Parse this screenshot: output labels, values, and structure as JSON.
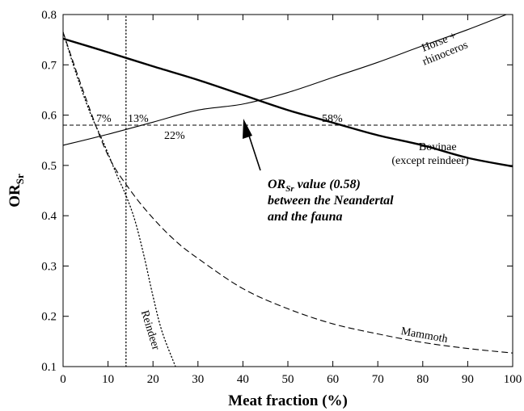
{
  "chart_data": {
    "type": "line",
    "title": "",
    "xlabel": "Meat fraction (%)",
    "ylabel": {
      "main": "OR",
      "sub": "Sr"
    },
    "xlim": [
      0,
      100
    ],
    "ylim": [
      0.1,
      0.8
    ],
    "xticks": [
      "0",
      "10",
      "20",
      "30",
      "40",
      "50",
      "60",
      "70",
      "80",
      "90",
      "100"
    ],
    "yticks": [
      "0.1",
      "0.2",
      "0.3",
      "0.4",
      "0.5",
      "0.6",
      "0.7",
      "0.8"
    ],
    "reference_line": {
      "y": 0.58,
      "style": "dashed"
    },
    "series": [
      {
        "name": "Horse + rhinoceros",
        "label_lines": [
          "Horse +",
          "rhinoceros"
        ],
        "style": "thin-solid",
        "x": [
          0,
          10,
          20,
          30,
          40,
          50,
          60,
          70,
          80,
          90,
          100
        ],
        "y": [
          0.54,
          0.562,
          0.586,
          0.61,
          0.622,
          0.645,
          0.675,
          0.705,
          0.738,
          0.77,
          0.805
        ]
      },
      {
        "name": "Bovinae (except reindeer)",
        "label_lines": [
          "Bovinae",
          "(except reindeer)"
        ],
        "style": "thick-solid",
        "x": [
          0,
          10,
          20,
          30,
          40,
          50,
          60,
          70,
          80,
          90,
          100
        ],
        "y": [
          0.752,
          0.725,
          0.697,
          0.67,
          0.64,
          0.61,
          0.585,
          0.56,
          0.54,
          0.515,
          0.498
        ]
      },
      {
        "name": "Mammoth",
        "label_lines": [
          "Mammoth"
        ],
        "style": "dashed",
        "x": [
          0,
          5,
          10,
          15,
          20,
          25,
          30,
          40,
          50,
          60,
          70,
          80,
          90,
          100
        ],
        "y": [
          0.765,
          0.635,
          0.52,
          0.45,
          0.395,
          0.35,
          0.315,
          0.255,
          0.215,
          0.185,
          0.165,
          0.148,
          0.136,
          0.127
        ]
      },
      {
        "name": "Reindeer",
        "label_lines": [
          "Reindeer"
        ],
        "style": "dotted",
        "x": [
          0,
          3,
          6,
          9,
          12,
          14,
          16,
          18,
          20,
          22,
          25
        ],
        "y": [
          0.765,
          0.68,
          0.605,
          0.545,
          0.48,
          0.44,
          0.39,
          0.32,
          0.24,
          0.17,
          0.1
        ]
      },
      {
        "name": "",
        "label_lines": [],
        "style": "vertical-dotted",
        "x": [
          14,
          14
        ],
        "y": [
          0.1,
          0.8
        ]
      }
    ],
    "intersections": [
      {
        "label": "7%",
        "x": 7,
        "y": 0.58
      },
      {
        "label": "13%",
        "x": 13,
        "y": 0.58
      },
      {
        "label": "22%",
        "x": 22,
        "y": 0.58
      },
      {
        "label": "58%",
        "x": 58,
        "y": 0.58
      }
    ],
    "annotation": {
      "line1_main": "OR",
      "line1_sub": "Sr",
      "line1_rest": " value (0.58)",
      "line2": "between the Neandertal",
      "line3": "and the fauna",
      "arrow_target": {
        "x": 41,
        "y": 0.58
      }
    },
    "legend": "none",
    "grid": false
  }
}
